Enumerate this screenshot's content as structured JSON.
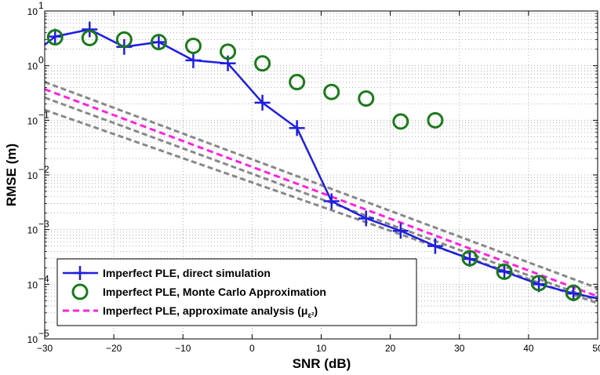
{
  "chart_data": {
    "type": "line",
    "xlabel": "SNR (dB)",
    "ylabel": "RMSE (m)",
    "xlim": [
      -30,
      50
    ],
    "ylim": [
      1e-05,
      10
    ],
    "y_scale": "log",
    "grid": true,
    "legend_position": "bottom-left",
    "x_ticks": [
      -30,
      -20,
      -10,
      0,
      10,
      20,
      30,
      40,
      50
    ],
    "y_tick_labels": [
      {
        "value": 1e-05,
        "base": "10",
        "exp": "−5"
      },
      {
        "value": 0.0001,
        "base": "10",
        "exp": "−4"
      },
      {
        "value": 0.001,
        "base": "10",
        "exp": "−3"
      },
      {
        "value": 0.01,
        "base": "10",
        "exp": "−2"
      },
      {
        "value": 0.1,
        "base": "10",
        "exp": "−1"
      },
      {
        "value": 1,
        "base": "10",
        "exp": "0"
      },
      {
        "value": 10,
        "base": "10",
        "exp": "1"
      }
    ],
    "series": [
      {
        "name": "Imperfect PLE, direct simulation",
        "style": "line-plus",
        "color": "#1f1fe0",
        "points": [
          {
            "x": -30,
            "y": 2.4
          },
          {
            "x": -28.5,
            "y": 3.4
          },
          {
            "x": -23.5,
            "y": 4.6
          },
          {
            "x": -18.5,
            "y": 2.2
          },
          {
            "x": -13.5,
            "y": 2.7
          },
          {
            "x": -8.5,
            "y": 1.25
          },
          {
            "x": -3.5,
            "y": 1.1
          },
          {
            "x": 1.5,
            "y": 0.21
          },
          {
            "x": 6.5,
            "y": 0.072
          },
          {
            "x": 11.5,
            "y": 0.0033
          },
          {
            "x": 16.5,
            "y": 0.0016
          },
          {
            "x": 21.5,
            "y": 0.00095
          },
          {
            "x": 26.5,
            "y": 0.0005
          },
          {
            "x": 31.5,
            "y": 0.00029
          },
          {
            "x": 36.5,
            "y": 0.00017
          },
          {
            "x": 41.5,
            "y": 0.0001
          },
          {
            "x": 46.5,
            "y": 6.8e-05
          },
          {
            "x": 50,
            "y": 5.5e-05
          }
        ]
      },
      {
        "name": "Imperfect PLE, Monte Carlo Approximation",
        "style": "circle",
        "color": "#1a7a1a",
        "points": [
          {
            "x": -28.5,
            "y": 3.3
          },
          {
            "x": -23.5,
            "y": 3.2
          },
          {
            "x": -18.5,
            "y": 3.0
          },
          {
            "x": -13.5,
            "y": 2.7
          },
          {
            "x": -8.5,
            "y": 2.3
          },
          {
            "x": -3.5,
            "y": 1.8
          },
          {
            "x": 1.5,
            "y": 1.1
          },
          {
            "x": 6.5,
            "y": 0.5
          },
          {
            "x": 11.5,
            "y": 0.33
          },
          {
            "x": 16.5,
            "y": 0.25
          },
          {
            "x": 21.5,
            "y": 0.095
          },
          {
            "x": 26.5,
            "y": 0.1
          },
          {
            "x": 31.5,
            "y": 0.0003
          },
          {
            "x": 36.5,
            "y": 0.00017
          },
          {
            "x": 41.5,
            "y": 0.000105
          },
          {
            "x": 46.5,
            "y": 7e-05
          }
        ]
      },
      {
        "name": "Imperfect PLE, approximate analysis (μ",
        "name_sub": "ε²",
        "name_tail": ")",
        "style": "dashed",
        "color": "#ff22dd",
        "points": [
          {
            "x": -30,
            "y": 0.37
          },
          {
            "x": 50,
            "y": 6e-05
          }
        ]
      }
    ],
    "bound_lines": {
      "color": "#888888",
      "lines": [
        [
          {
            "x": -30,
            "y": 0.5
          },
          {
            "x": 50,
            "y": 8.5e-05
          }
        ],
        [
          {
            "x": -30,
            "y": 0.26
          },
          {
            "x": 50,
            "y": 5e-05
          }
        ],
        [
          {
            "x": -30,
            "y": 0.155
          },
          {
            "x": 50,
            "y": 4.5e-05
          }
        ]
      ]
    }
  }
}
